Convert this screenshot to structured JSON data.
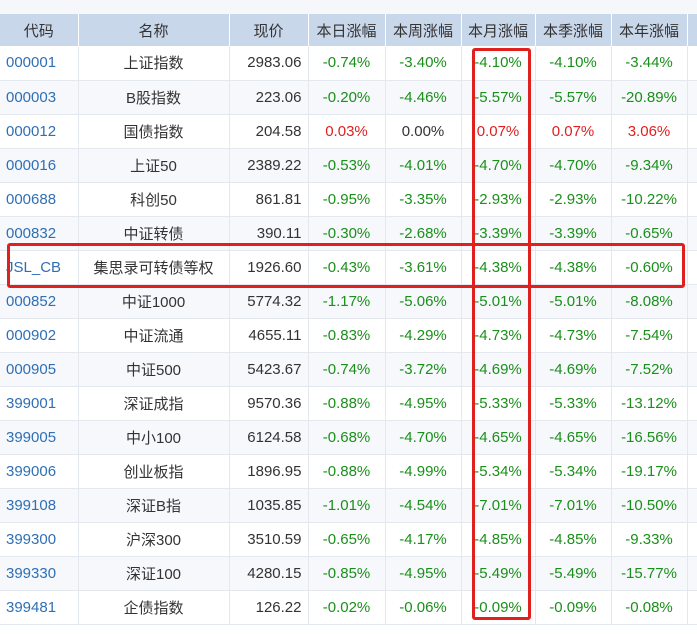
{
  "headers": [
    "代码",
    "名称",
    "现价",
    "本日涨幅",
    "本周涨幅",
    "本月涨幅",
    "本季涨幅",
    "本年涨幅"
  ],
  "rows": [
    {
      "code": "000001",
      "name": "上证指数",
      "price": "2983.06",
      "day": "-0.74%",
      "week": "-3.40%",
      "month": "-4.10%",
      "quarter": "-4.10%",
      "year": "-3.44%"
    },
    {
      "code": "000003",
      "name": "B股指数",
      "price": "223.06",
      "day": "-0.20%",
      "week": "-4.46%",
      "month": "-5.57%",
      "quarter": "-5.57%",
      "year": "-20.89%"
    },
    {
      "code": "000012",
      "name": "国债指数",
      "price": "204.58",
      "day": "0.03%",
      "week": "0.00%",
      "month": "0.07%",
      "quarter": "0.07%",
      "year": "3.06%"
    },
    {
      "code": "000016",
      "name": "上证50",
      "price": "2389.22",
      "day": "-0.53%",
      "week": "-4.01%",
      "month": "-4.70%",
      "quarter": "-4.70%",
      "year": "-9.34%"
    },
    {
      "code": "000688",
      "name": "科创50",
      "price": "861.81",
      "day": "-0.95%",
      "week": "-3.35%",
      "month": "-2.93%",
      "quarter": "-2.93%",
      "year": "-10.22%"
    },
    {
      "code": "000832",
      "name": "中证转债",
      "price": "390.11",
      "day": "-0.30%",
      "week": "-2.68%",
      "month": "-3.39%",
      "quarter": "-3.39%",
      "year": "-0.65%"
    },
    {
      "code": "JSL_CB",
      "name": "集思录可转债等权",
      "price": "1926.60",
      "day": "-0.43%",
      "week": "-3.61%",
      "month": "-4.38%",
      "quarter": "-4.38%",
      "year": "-0.60%"
    },
    {
      "code": "000852",
      "name": "中证1000",
      "price": "5774.32",
      "day": "-1.17%",
      "week": "-5.06%",
      "month": "-5.01%",
      "quarter": "-5.01%",
      "year": "-8.08%"
    },
    {
      "code": "000902",
      "name": "中证流通",
      "price": "4655.11",
      "day": "-0.83%",
      "week": "-4.29%",
      "month": "-4.73%",
      "quarter": "-4.73%",
      "year": "-7.54%"
    },
    {
      "code": "000905",
      "name": "中证500",
      "price": "5423.67",
      "day": "-0.74%",
      "week": "-3.72%",
      "month": "-4.69%",
      "quarter": "-4.69%",
      "year": "-7.52%"
    },
    {
      "code": "399001",
      "name": "深证成指",
      "price": "9570.36",
      "day": "-0.88%",
      "week": "-4.95%",
      "month": "-5.33%",
      "quarter": "-5.33%",
      "year": "-13.12%"
    },
    {
      "code": "399005",
      "name": "中小100",
      "price": "6124.58",
      "day": "-0.68%",
      "week": "-4.70%",
      "month": "-4.65%",
      "quarter": "-4.65%",
      "year": "-16.56%"
    },
    {
      "code": "399006",
      "name": "创业板指",
      "price": "1896.95",
      "day": "-0.88%",
      "week": "-4.99%",
      "month": "-5.34%",
      "quarter": "-5.34%",
      "year": "-19.17%"
    },
    {
      "code": "399108",
      "name": "深证B指",
      "price": "1035.85",
      "day": "-1.01%",
      "week": "-4.54%",
      "month": "-7.01%",
      "quarter": "-7.01%",
      "year": "-10.50%"
    },
    {
      "code": "399300",
      "name": "沪深300",
      "price": "3510.59",
      "day": "-0.65%",
      "week": "-4.17%",
      "month": "-4.85%",
      "quarter": "-4.85%",
      "year": "-9.33%"
    },
    {
      "code": "399330",
      "name": "深证100",
      "price": "4280.15",
      "day": "-0.85%",
      "week": "-4.95%",
      "month": "-5.49%",
      "quarter": "-5.49%",
      "year": "-15.77%"
    },
    {
      "code": "399481",
      "name": "企债指数",
      "price": "126.22",
      "day": "-0.02%",
      "week": "-0.06%",
      "month": "-0.09%",
      "quarter": "-0.09%",
      "year": "-0.08%"
    }
  ],
  "colors": {
    "up": "#e02020",
    "down": "#1a8f1a",
    "link": "#2f6fb5",
    "header_bg": "#c9d7ea",
    "highlight": "#e0201c"
  }
}
